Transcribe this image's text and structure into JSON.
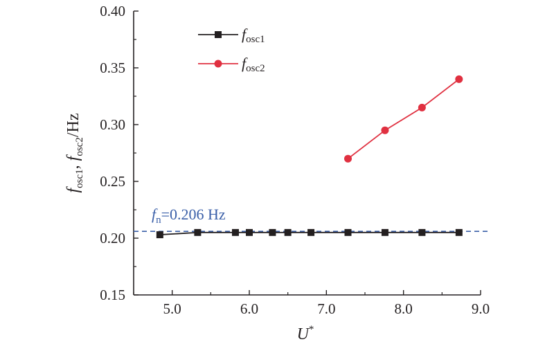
{
  "chart_data": {
    "type": "line",
    "x_axis": {
      "label_main": "U",
      "label_sup": "*",
      "range": [
        4.5,
        9.0
      ],
      "ticks": [
        5.0,
        6.0,
        7.0,
        8.0,
        9.0
      ],
      "tick_labels": [
        "5.0",
        "6.0",
        "7.0",
        "8.0",
        "9.0"
      ]
    },
    "y_axis": {
      "label_parts": [
        {
          "text": "f",
          "style": "italic"
        },
        {
          "text": "osc1",
          "style": "sub"
        },
        {
          "text": ", ",
          "style": "normal"
        },
        {
          "text": "f",
          "style": "italic"
        },
        {
          "text": "osc2",
          "style": "sub"
        },
        {
          "text": "/Hz",
          "style": "normal"
        }
      ],
      "range": [
        0.15,
        0.4
      ],
      "ticks": [
        0.15,
        0.2,
        0.25,
        0.3,
        0.35,
        0.4
      ],
      "tick_labels": [
        "0.15",
        "0.20",
        "0.25",
        "0.30",
        "0.35",
        "0.40"
      ]
    },
    "grid": false,
    "legend_position": "top-left",
    "series": [
      {
        "name_main": "f",
        "name_sub": "osc1",
        "color": "#231f20",
        "marker": "square",
        "x": [
          4.84,
          5.33,
          5.82,
          6.0,
          6.3,
          6.5,
          6.8,
          7.28,
          7.76,
          8.24,
          8.72
        ],
        "y": [
          0.203,
          0.205,
          0.205,
          0.205,
          0.205,
          0.205,
          0.205,
          0.205,
          0.205,
          0.205,
          0.205
        ]
      },
      {
        "name_main": "f",
        "name_sub": "osc2",
        "color": "#e03040",
        "marker": "circle",
        "x": [
          7.28,
          7.76,
          8.24,
          8.72
        ],
        "y": [
          0.27,
          0.295,
          0.315,
          0.34
        ]
      }
    ],
    "reference_line": {
      "y": 0.206,
      "color": "#3a5fa8",
      "style": "dashed",
      "label_main": "f",
      "label_sub": "n",
      "label_value": "=0.206 Hz"
    }
  }
}
